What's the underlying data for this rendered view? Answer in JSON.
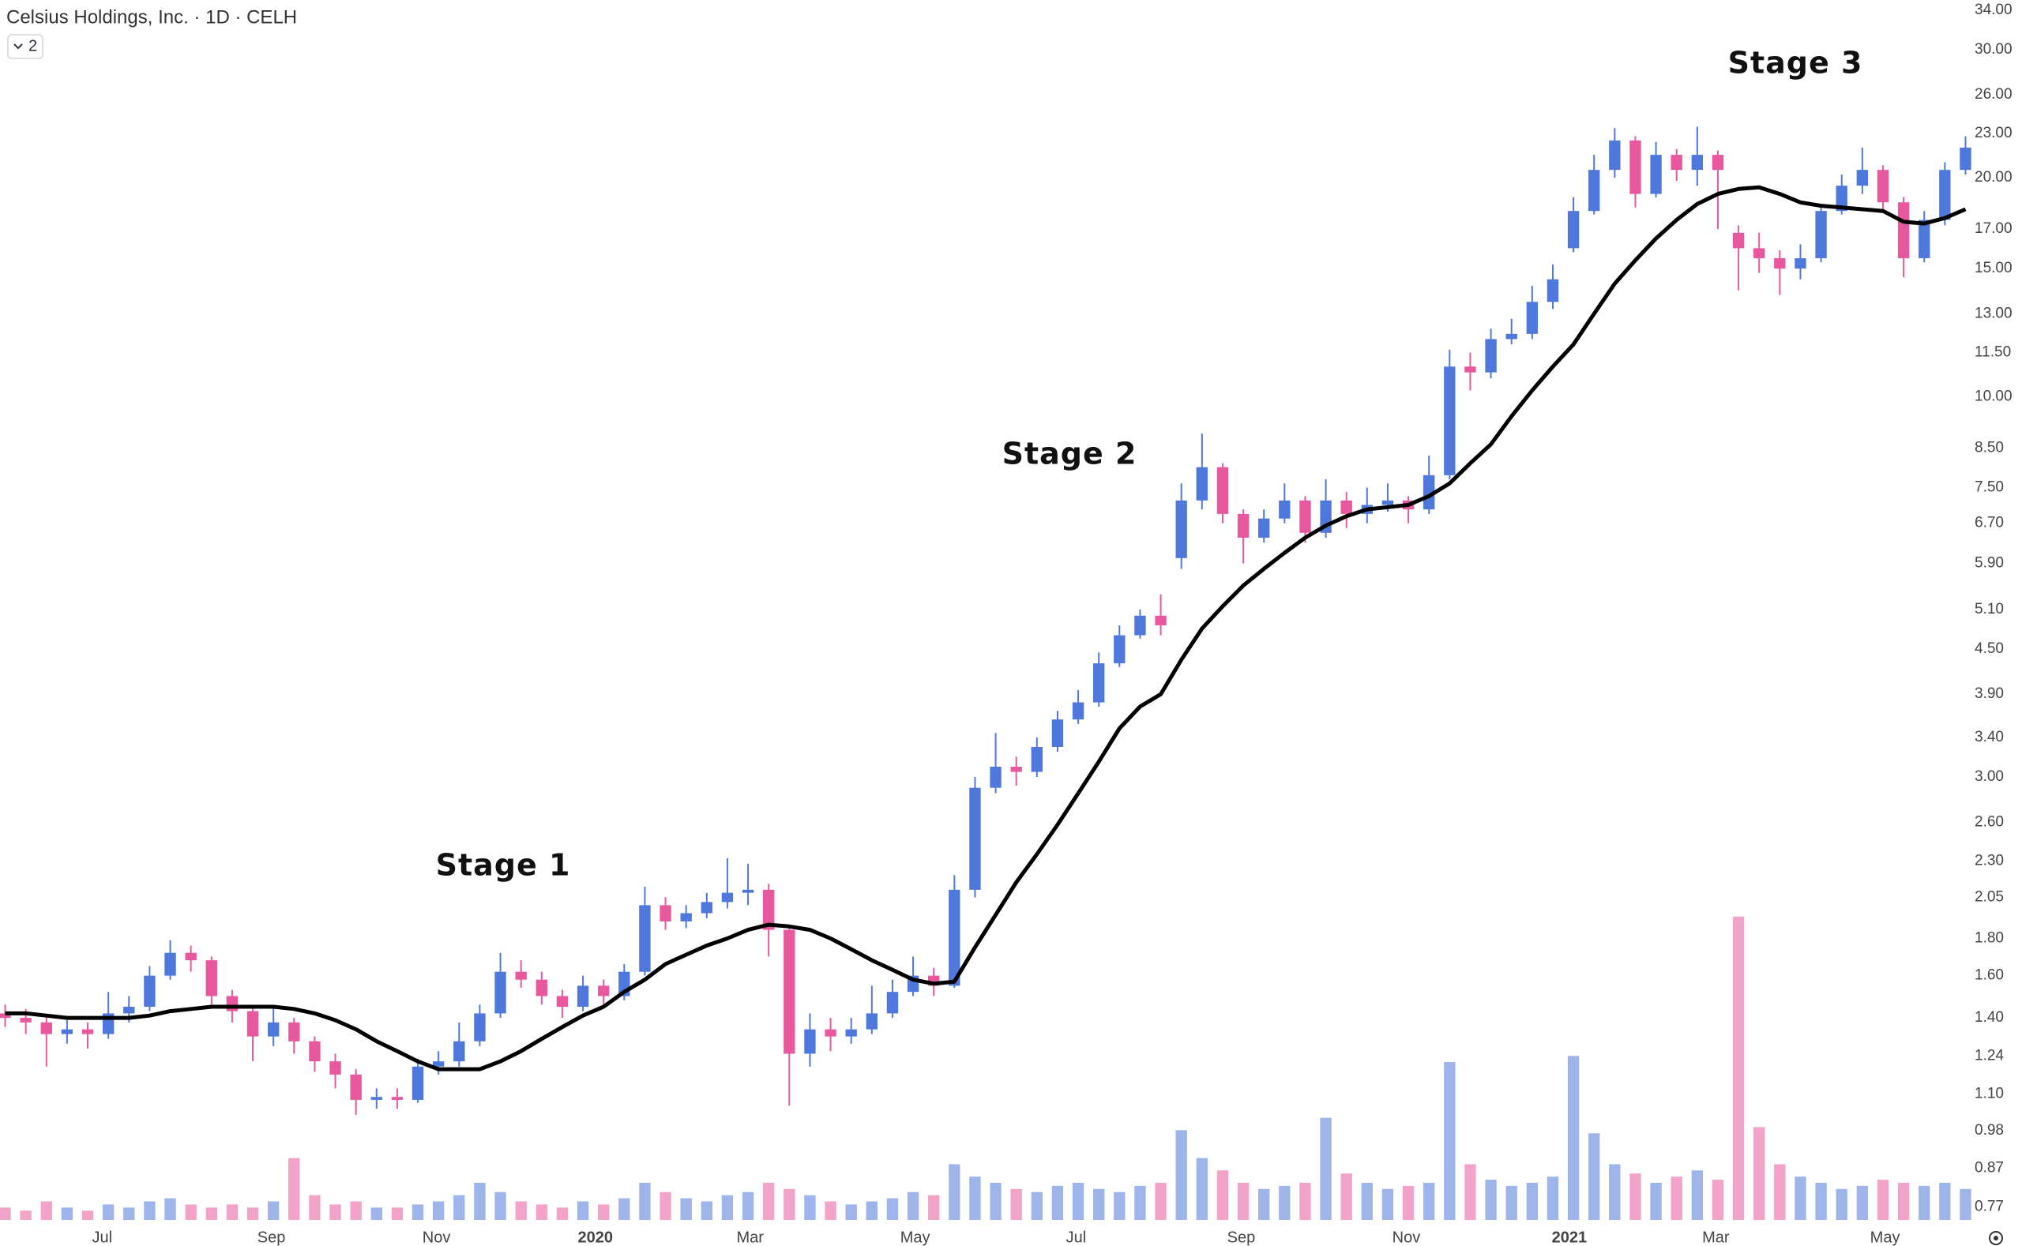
{
  "chart_data": {
    "type": "candlestick",
    "title": "Celsius Holdings, Inc. · 1D · CELH",
    "hidden_indicators": 2,
    "log_scale": true,
    "grid": false,
    "up_color": "#4f78dd",
    "down_color": "#e9579f",
    "xlim": [
      -0.25,
      95.25
    ],
    "xticks": [
      {
        "value": 4.7,
        "label": "Jul"
      },
      {
        "value": 12.9,
        "label": "Sep"
      },
      {
        "value": 20.9,
        "label": "Nov"
      },
      {
        "value": 28.6,
        "label": "2020"
      },
      {
        "value": 36.1,
        "label": "Mar"
      },
      {
        "value": 44.1,
        "label": "May"
      },
      {
        "value": 51.9,
        "label": "Jul"
      },
      {
        "value": 59.9,
        "label": "Sep"
      },
      {
        "value": 67.9,
        "label": "Nov"
      },
      {
        "value": 75.8,
        "label": "2021"
      },
      {
        "value": 82.9,
        "label": "Mar"
      },
      {
        "value": 91.1,
        "label": "May"
      }
    ],
    "ylim": [
      0.733,
      35.1
    ],
    "yticks": [
      0.77,
      0.87,
      0.98,
      {
        "value": 1.1,
        "label": "1.10"
      },
      1.24,
      {
        "value": 1.4,
        "label": "1.40"
      },
      {
        "value": 1.6,
        "label": "1.60"
      },
      {
        "value": 1.8,
        "label": "1.80"
      },
      2.05,
      {
        "value": 2.3,
        "label": "2.30"
      },
      {
        "value": 2.6,
        "label": "2.60"
      },
      {
        "value": 3,
        "label": "3.00"
      },
      {
        "value": 3.4,
        "label": "3.40"
      },
      {
        "value": 3.9,
        "label": "3.90"
      },
      {
        "value": 4.5,
        "label": "4.50"
      },
      {
        "value": 5.1,
        "label": "5.10"
      },
      {
        "value": 5.9,
        "label": "5.90"
      },
      {
        "value": 6.7,
        "label": "6.70"
      },
      {
        "value": 7.5,
        "label": "7.50"
      },
      {
        "value": 8.5,
        "label": "8.50"
      },
      {
        "value": 10,
        "label": "10.00"
      },
      {
        "value": 11.5,
        "label": "11.50"
      },
      {
        "value": 13,
        "label": "13.00"
      },
      {
        "value": 15,
        "label": "15.00"
      },
      {
        "value": 17,
        "label": "17.00"
      },
      {
        "value": 20,
        "label": "20.00"
      },
      {
        "value": 23,
        "label": "23.00"
      },
      {
        "value": 26,
        "label": "26.00"
      },
      {
        "value": 30,
        "label": "30.00"
      },
      {
        "value": 34,
        "label": "34.00"
      }
    ],
    "open": [
      1.42,
      1.4,
      1.38,
      1.33,
      1.35,
      1.33,
      1.42,
      1.45,
      1.6,
      1.72,
      1.68,
      1.5,
      1.43,
      1.32,
      1.38,
      1.3,
      1.22,
      1.17,
      1.08,
      1.09,
      1.08,
      1.2,
      1.22,
      1.3,
      1.42,
      1.62,
      1.58,
      1.5,
      1.45,
      1.55,
      1.5,
      1.62,
      2.0,
      1.9,
      1.95,
      2.02,
      2.08,
      2.1,
      1.85,
      1.25,
      1.35,
      1.32,
      1.35,
      1.42,
      1.52,
      1.6,
      1.55,
      2.1,
      2.9,
      3.1,
      3.05,
      3.3,
      3.6,
      3.8,
      4.3,
      4.7,
      5.0,
      6.0,
      7.2,
      8.0,
      6.9,
      6.4,
      6.8,
      7.2,
      6.5,
      7.2,
      6.9,
      7.1,
      7.2,
      7.0,
      7.8,
      11.0,
      10.8,
      12.0,
      12.2,
      13.5,
      16.0,
      18.0,
      20.5,
      22.5,
      19.0,
      21.5,
      20.5,
      21.5,
      16.8,
      16.0,
      15.5,
      15.0,
      15.5,
      18.0,
      19.5,
      20.5,
      18.5,
      15.5,
      17.5,
      20.5
    ],
    "high": [
      1.46,
      1.44,
      1.41,
      1.39,
      1.38,
      1.52,
      1.5,
      1.65,
      1.79,
      1.76,
      1.7,
      1.53,
      1.45,
      1.45,
      1.4,
      1.32,
      1.25,
      1.19,
      1.12,
      1.12,
      1.23,
      1.26,
      1.38,
      1.46,
      1.72,
      1.68,
      1.62,
      1.53,
      1.6,
      1.58,
      1.66,
      2.12,
      2.05,
      2.0,
      2.08,
      2.32,
      2.28,
      2.14,
      1.88,
      1.42,
      1.4,
      1.4,
      1.55,
      1.58,
      1.7,
      1.64,
      2.2,
      3.0,
      3.45,
      3.2,
      3.4,
      3.7,
      3.95,
      4.45,
      4.85,
      5.1,
      5.35,
      7.6,
      8.9,
      8.1,
      7.0,
      7.0,
      7.6,
      7.3,
      7.7,
      7.4,
      7.5,
      7.6,
      7.3,
      8.3,
      11.6,
      11.5,
      12.4,
      12.8,
      14.2,
      15.2,
      18.8,
      21.5,
      23.4,
      22.8,
      22.4,
      21.9,
      23.5,
      21.8,
      17.2,
      16.8,
      15.9,
      16.2,
      18.4,
      20.2,
      22.0,
      20.8,
      18.8,
      18.0,
      21.0,
      22.8
    ],
    "low": [
      1.36,
      1.33,
      1.2,
      1.29,
      1.27,
      1.31,
      1.38,
      1.43,
      1.58,
      1.62,
      1.46,
      1.38,
      1.22,
      1.28,
      1.25,
      1.18,
      1.12,
      1.03,
      1.05,
      1.05,
      1.07,
      1.17,
      1.2,
      1.28,
      1.4,
      1.54,
      1.46,
      1.4,
      1.43,
      1.46,
      1.48,
      1.6,
      1.85,
      1.86,
      1.92,
      1.98,
      2.0,
      1.7,
      1.06,
      1.2,
      1.26,
      1.29,
      1.33,
      1.4,
      1.5,
      1.5,
      1.54,
      2.05,
      2.85,
      2.92,
      3.0,
      3.25,
      3.55,
      3.75,
      4.25,
      4.65,
      4.7,
      5.8,
      7.0,
      6.7,
      5.9,
      6.3,
      6.7,
      6.3,
      6.4,
      6.6,
      6.7,
      6.95,
      6.7,
      6.9,
      7.7,
      10.2,
      10.6,
      11.8,
      12.0,
      13.2,
      15.8,
      17.8,
      20.0,
      18.2,
      18.8,
      19.8,
      19.5,
      17.0,
      14.0,
      14.8,
      13.8,
      14.5,
      15.3,
      17.8,
      19.0,
      18.0,
      14.6,
      15.3,
      17.2,
      20.2
    ],
    "close": [
      1.4,
      1.38,
      1.33,
      1.35,
      1.33,
      1.42,
      1.45,
      1.6,
      1.72,
      1.68,
      1.5,
      1.43,
      1.32,
      1.38,
      1.3,
      1.22,
      1.17,
      1.08,
      1.09,
      1.08,
      1.2,
      1.22,
      1.3,
      1.42,
      1.62,
      1.58,
      1.5,
      1.45,
      1.55,
      1.5,
      1.62,
      2.0,
      1.9,
      1.95,
      2.02,
      2.08,
      2.1,
      1.85,
      1.25,
      1.35,
      1.32,
      1.35,
      1.42,
      1.52,
      1.6,
      1.55,
      2.1,
      2.9,
      3.1,
      3.05,
      3.3,
      3.6,
      3.8,
      4.3,
      4.7,
      5.0,
      4.85,
      7.2,
      8.0,
      6.9,
      6.4,
      6.8,
      7.2,
      6.5,
      7.2,
      6.9,
      7.1,
      7.2,
      7.0,
      7.8,
      11.0,
      10.8,
      12.0,
      12.2,
      13.5,
      14.5,
      18.0,
      20.5,
      22.5,
      19.0,
      21.5,
      20.5,
      21.5,
      20.5,
      16.0,
      15.5,
      15.0,
      15.5,
      18.0,
      19.5,
      20.5,
      18.5,
      15.5,
      17.5,
      20.5,
      22.0
    ],
    "moving_average": {
      "color": "#000000",
      "values": [
        1.42,
        1.42,
        1.41,
        1.4,
        1.4,
        1.4,
        1.4,
        1.41,
        1.43,
        1.44,
        1.45,
        1.45,
        1.45,
        1.45,
        1.44,
        1.42,
        1.39,
        1.35,
        1.3,
        1.26,
        1.22,
        1.19,
        1.19,
        1.19,
        1.22,
        1.26,
        1.31,
        1.36,
        1.41,
        1.45,
        1.52,
        1.58,
        1.66,
        1.71,
        1.76,
        1.8,
        1.85,
        1.88,
        1.87,
        1.85,
        1.8,
        1.74,
        1.68,
        1.63,
        1.58,
        1.56,
        1.57,
        1.75,
        1.94,
        2.15,
        2.35,
        2.58,
        2.85,
        3.15,
        3.5,
        3.75,
        3.9,
        4.35,
        4.8,
        5.15,
        5.5,
        5.8,
        6.1,
        6.4,
        6.65,
        6.85,
        7.0,
        7.05,
        7.1,
        7.3,
        7.6,
        8.1,
        8.6,
        9.4,
        10.2,
        11.0,
        11.8,
        13.0,
        14.3,
        15.4,
        16.5,
        17.5,
        18.4,
        19.0,
        19.3,
        19.4,
        19.0,
        18.5,
        18.3,
        18.2,
        18.1,
        18.0,
        17.4,
        17.3,
        17.6,
        18.1
      ]
    },
    "volume": {
      "y2lim": [
        0,
        100
      ],
      "values": [
        4,
        3,
        6,
        4,
        3,
        5,
        4,
        6,
        7,
        5,
        4,
        5,
        4,
        6,
        20,
        8,
        5,
        6,
        4,
        4,
        5,
        6,
        8,
        12,
        9,
        6,
        5,
        4,
        6,
        5,
        7,
        12,
        9,
        7,
        6,
        8,
        9,
        12,
        10,
        8,
        6,
        5,
        6,
        7,
        9,
        8,
        18,
        14,
        12,
        10,
        9,
        11,
        12,
        10,
        9,
        11,
        12,
        29,
        20,
        16,
        12,
        10,
        11,
        12,
        33,
        15,
        12,
        10,
        11,
        12,
        51,
        18,
        13,
        11,
        12,
        14,
        53,
        28,
        18,
        15,
        12,
        14,
        16,
        13,
        98,
        30,
        18,
        14,
        12,
        10,
        11,
        13,
        12,
        11,
        12,
        10
      ]
    },
    "annotations": [
      "Stage 1",
      "Stage 2",
      "Stage 3"
    ]
  }
}
